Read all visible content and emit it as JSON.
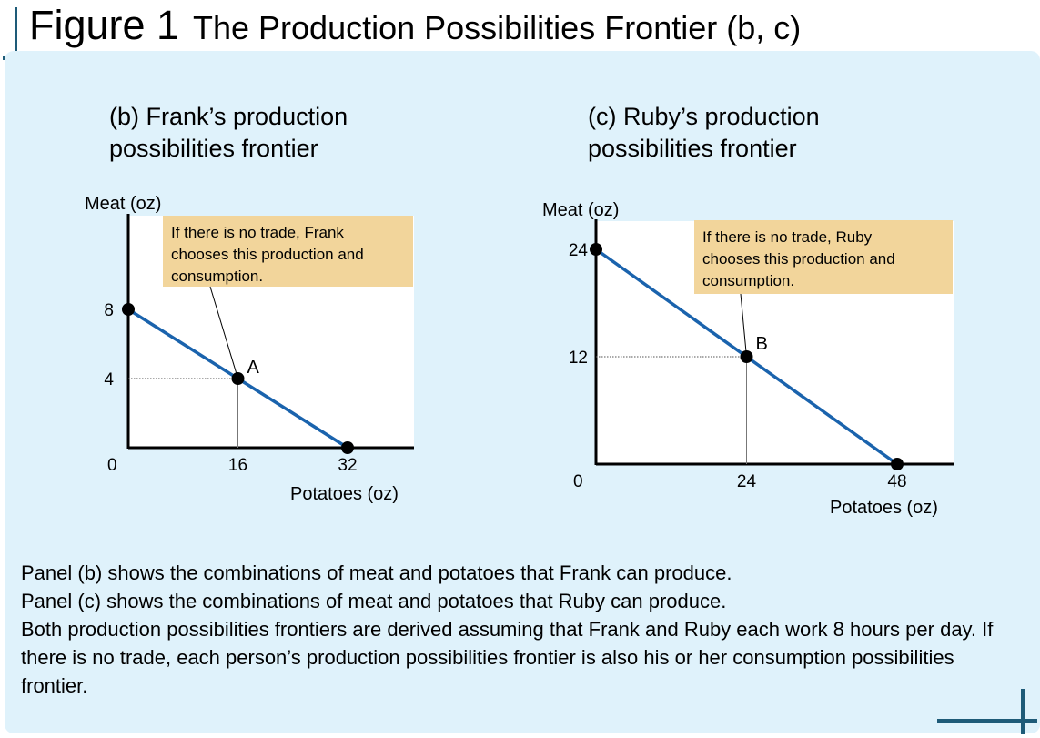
{
  "figure": {
    "label": "Figure 1",
    "title": "The Production Possibilities Frontier (b, c)"
  },
  "caption": [
    "Panel (b) shows the combinations of meat and potatoes that Frank can produce.",
    "Panel (c) shows the combinations of meat and potatoes that Ruby can produce.",
    "Both production possibilities frontiers are derived assuming that Frank and Ruby each work 8 hours per day. If there is no trade, each person’s production possibilities frontier is also his or her consumption possibilities frontier."
  ],
  "colors": {
    "frontier": "#1a63ad",
    "callout": "#f2d59b",
    "panel_bg": "#dff2fb",
    "accent": "#1e5b78"
  },
  "chart_data": [
    {
      "type": "line",
      "title": "(b) Frank’s production possibilities frontier",
      "title_lines": [
        "(b) Frank’s production",
        "possibilities frontier"
      ],
      "xlabel": "Potatoes (oz)",
      "ylabel": "Meat (oz)",
      "xlim": [
        0,
        32
      ],
      "ylim": [
        0,
        8
      ],
      "x_ticks": [
        0,
        16,
        32
      ],
      "y_ticks": [
        0,
        4,
        8
      ],
      "series": [
        {
          "x": [
            0,
            16,
            32
          ],
          "y": [
            8,
            4,
            0
          ]
        }
      ],
      "points": [
        {
          "x": 0,
          "y": 8,
          "label": ""
        },
        {
          "x": 16,
          "y": 4,
          "label": "A"
        },
        {
          "x": 32,
          "y": 0,
          "label": ""
        }
      ],
      "annotation": {
        "lines": [
          "If there is no trade, Frank",
          "chooses this production and",
          "consumption."
        ],
        "point": "A"
      }
    },
    {
      "type": "line",
      "title": "(c) Ruby’s production possibilities frontier",
      "title_lines": [
        "(c) Ruby’s production",
        "possibilities frontier"
      ],
      "xlabel": "Potatoes (oz)",
      "ylabel": "Meat (oz)",
      "xlim": [
        0,
        48
      ],
      "ylim": [
        0,
        24
      ],
      "x_ticks": [
        0,
        24,
        48
      ],
      "y_ticks": [
        0,
        12,
        24
      ],
      "series": [
        {
          "x": [
            0,
            24,
            48
          ],
          "y": [
            24,
            12,
            0
          ]
        }
      ],
      "points": [
        {
          "x": 0,
          "y": 24,
          "label": ""
        },
        {
          "x": 24,
          "y": 12,
          "label": "B"
        },
        {
          "x": 48,
          "y": 0,
          "label": ""
        }
      ],
      "annotation": {
        "lines": [
          "If there is no trade, Ruby",
          "chooses this production and",
          "consumption."
        ],
        "point": "B"
      }
    }
  ]
}
